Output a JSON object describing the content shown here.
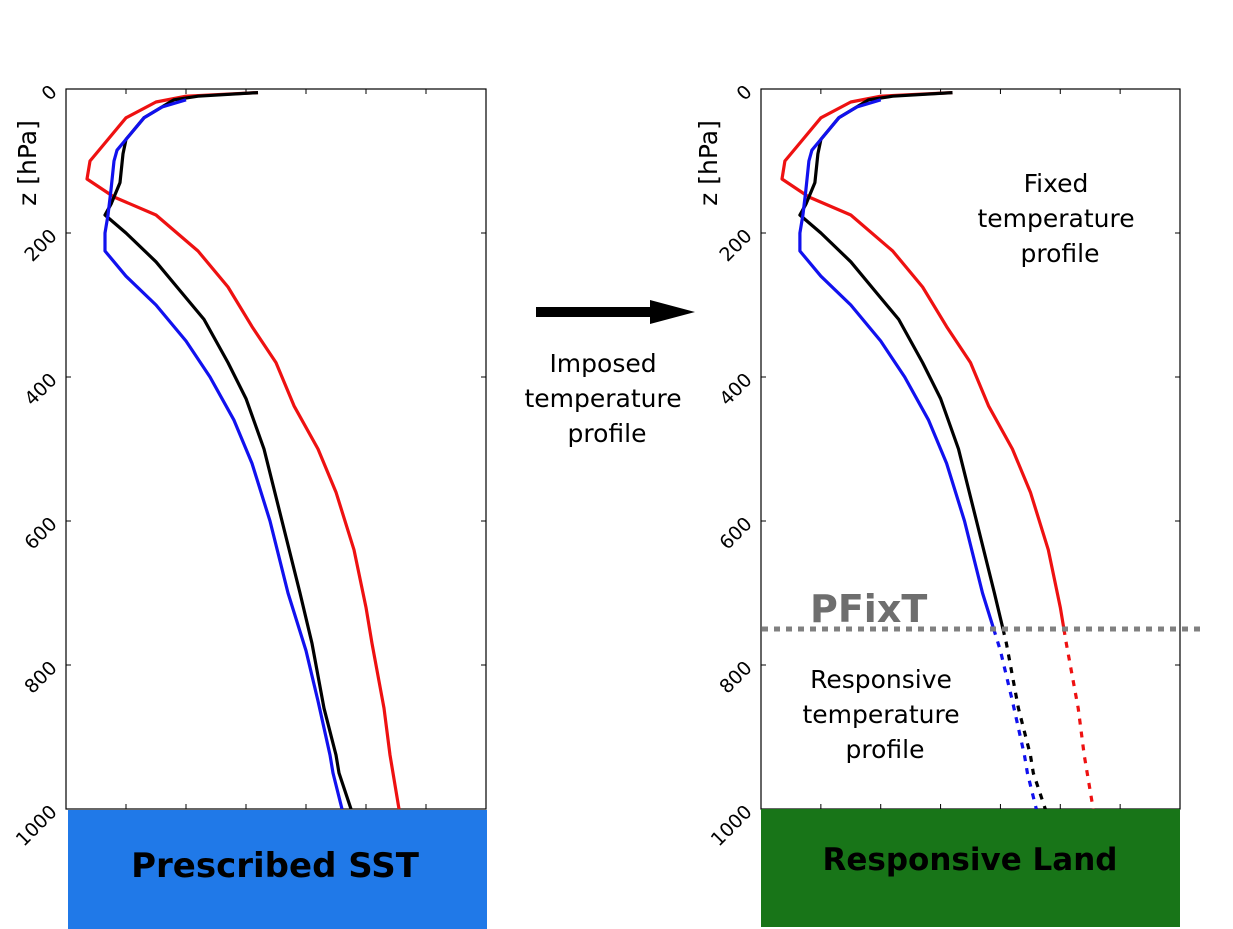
{
  "left_panel": {
    "ylabel": "z [hPa]",
    "yticks": [
      "0",
      "200",
      "400",
      "600",
      "800",
      "1000"
    ],
    "surface_label": "Prescribed SST",
    "surface_color": "#2079e8"
  },
  "right_panel": {
    "ylabel": "z [hPa]",
    "yticks": [
      "0",
      "200",
      "400",
      "600",
      "800",
      "1000"
    ],
    "upper_annotation": [
      "Fixed",
      "temperature",
      "profile"
    ],
    "lower_annotation": [
      "Responsive",
      "temperature",
      "profile"
    ],
    "pfixt_label": "PFixT",
    "pfixt_level": 750,
    "surface_label": "Responsive Land",
    "surface_color": "#187518"
  },
  "arrow": {
    "label_lines": [
      "Imposed",
      "temperature",
      "profile"
    ]
  },
  "colors": {
    "red": "#ee1111",
    "black": "#000000",
    "blue": "#1111ee",
    "pfixt_line": "#808080"
  },
  "chart_data": {
    "type": "line",
    "y_unit": "hPa",
    "ylim": [
      0,
      1000
    ],
    "y_inverted": true,
    "x_axis_labels_shown": false,
    "xlim": [
      0,
      7
    ],
    "series": [
      {
        "color": "red",
        "points": [
          [
            3.2,
            5
          ],
          [
            2.0,
            10
          ],
          [
            1.5,
            18
          ],
          [
            1.0,
            40
          ],
          [
            0.6,
            80
          ],
          [
            0.4,
            100
          ],
          [
            0.35,
            125
          ],
          [
            0.8,
            150
          ],
          [
            1.5,
            175
          ],
          [
            2.2,
            225
          ],
          [
            2.7,
            275
          ],
          [
            3.1,
            330
          ],
          [
            3.5,
            380
          ],
          [
            3.8,
            440
          ],
          [
            4.2,
            500
          ],
          [
            4.5,
            560
          ],
          [
            4.8,
            640
          ],
          [
            5.0,
            720
          ],
          [
            5.1,
            770
          ],
          [
            5.3,
            860
          ],
          [
            5.4,
            925
          ],
          [
            5.45,
            950
          ],
          [
            5.55,
            1000
          ]
        ]
      },
      {
        "color": "black",
        "points": [
          [
            3.2,
            5
          ],
          [
            2.2,
            10
          ],
          [
            1.8,
            15
          ],
          [
            1.3,
            40
          ],
          [
            1.0,
            70
          ],
          [
            0.95,
            90
          ],
          [
            0.9,
            130
          ],
          [
            0.75,
            160
          ],
          [
            0.65,
            175
          ],
          [
            1.0,
            200
          ],
          [
            1.5,
            240
          ],
          [
            1.9,
            280
          ],
          [
            2.3,
            320
          ],
          [
            2.7,
            380
          ],
          [
            3.0,
            430
          ],
          [
            3.3,
            500
          ],
          [
            3.6,
            600
          ],
          [
            3.9,
            700
          ],
          [
            4.1,
            770
          ],
          [
            4.3,
            860
          ],
          [
            4.5,
            925
          ],
          [
            4.55,
            950
          ],
          [
            4.75,
            1000
          ]
        ]
      },
      {
        "color": "blue",
        "points": [
          [
            2.0,
            15
          ],
          [
            1.6,
            25
          ],
          [
            1.3,
            40
          ],
          [
            1.0,
            70
          ],
          [
            0.85,
            85
          ],
          [
            0.8,
            100
          ],
          [
            0.75,
            140
          ],
          [
            0.7,
            175
          ],
          [
            0.65,
            200
          ],
          [
            0.65,
            225
          ],
          [
            1.0,
            260
          ],
          [
            1.5,
            300
          ],
          [
            2.0,
            350
          ],
          [
            2.4,
            400
          ],
          [
            2.8,
            460
          ],
          [
            3.1,
            520
          ],
          [
            3.4,
            600
          ],
          [
            3.7,
            700
          ],
          [
            4.0,
            780
          ],
          [
            4.2,
            850
          ],
          [
            4.4,
            925
          ],
          [
            4.45,
            950
          ],
          [
            4.6,
            1000
          ]
        ]
      }
    ],
    "right_panel_series_differences": "below PFixT (750 hPa) the profiles are dashed (responsive); above they are solid (fixed)"
  }
}
